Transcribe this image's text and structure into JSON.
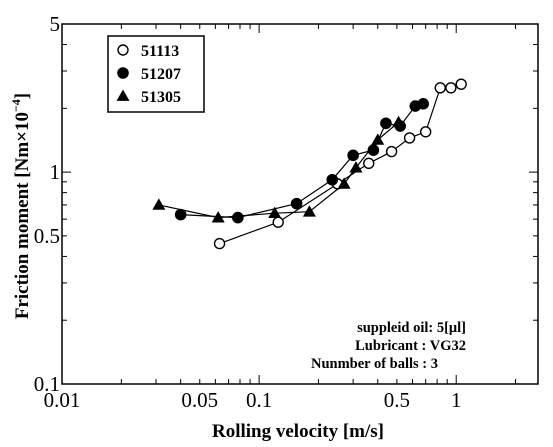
{
  "chart_data": {
    "type": "scatter",
    "xlabel": "Rolling velocity [m/s]",
    "ylabel": "Friction moment [Nm",
    "ylabel_mult": "×10",
    "ylabel_exp": "−4",
    "ylabel_close": "]",
    "x_scale": "log",
    "y_scale": "log",
    "xlim": [
      0.01,
      2.6
    ],
    "ylim": [
      0.1,
      5
    ],
    "x_ticks": [
      {
        "value": 0.01,
        "label": "0.01"
      },
      {
        "value": 0.05,
        "label": "0.05"
      },
      {
        "value": 0.1,
        "label": "0.1"
      },
      {
        "value": 0.5,
        "label": "0.5"
      },
      {
        "value": 1,
        "label": "1"
      }
    ],
    "y_ticks": [
      {
        "value": 0.1,
        "label": "0.1"
      },
      {
        "value": 0.5,
        "label": "0.5"
      },
      {
        "value": 1,
        "label": "1"
      },
      {
        "value": 5,
        "label": "5"
      }
    ],
    "grid": false,
    "legend_position": "top-left",
    "series": [
      {
        "name": "51113",
        "marker": "circle-open",
        "x": [
          0.063,
          0.125,
          0.25,
          0.36,
          0.47,
          0.58,
          0.7,
          0.83,
          0.94,
          1.06
        ],
        "y": [
          0.46,
          0.58,
          0.88,
          1.1,
          1.25,
          1.45,
          1.55,
          2.5,
          2.5,
          2.6
        ]
      },
      {
        "name": "51207",
        "marker": "circle-filled",
        "x": [
          0.04,
          0.078,
          0.155,
          0.235,
          0.3,
          0.38,
          0.44,
          0.52,
          0.62,
          0.68
        ],
        "y": [
          0.63,
          0.61,
          0.71,
          0.92,
          1.2,
          1.27,
          1.7,
          1.65,
          2.05,
          2.1
        ]
      },
      {
        "name": "51305",
        "marker": "triangle-filled",
        "x": [
          0.031,
          0.062,
          0.12,
          0.18,
          0.27,
          0.31,
          0.4,
          0.51
        ],
        "y": [
          0.7,
          0.61,
          0.64,
          0.65,
          0.88,
          1.05,
          1.42,
          1.72
        ]
      }
    ],
    "annotations": [
      "suppleid oil: 5[μl]",
      "Lubricant : VG32",
      "Nunmber of balls : 3"
    ]
  }
}
